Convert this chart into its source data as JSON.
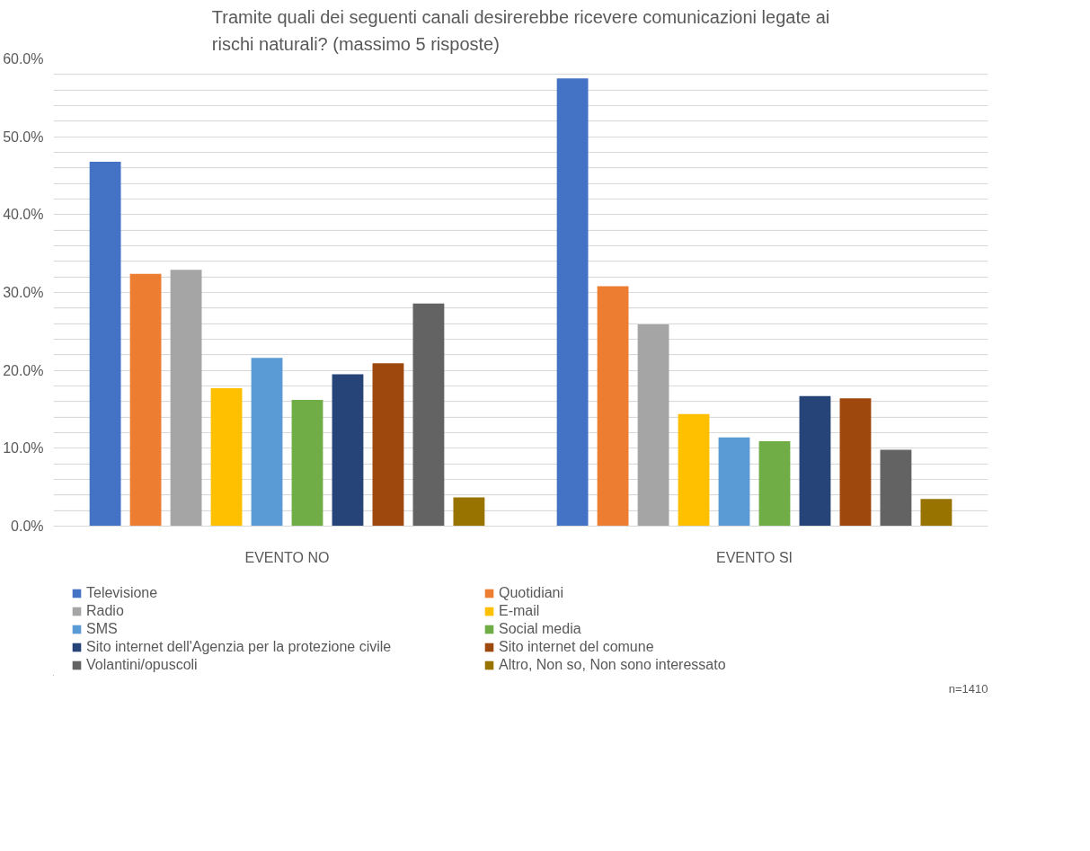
{
  "chart_data": {
    "type": "bar",
    "title": "Tramite quali dei seguenti canali desirerebbe ricevere comunicazioni legate ai rischi naturali? (massimo 5 risposte)",
    "categories": [
      "EVENTO NO",
      "EVENTO SI"
    ],
    "series": [
      {
        "name": "Televisione",
        "color": "#4472c4",
        "values": [
          46.8,
          57.5
        ]
      },
      {
        "name": "Quotidiani",
        "color": "#ed7d31",
        "values": [
          32.4,
          30.8
        ]
      },
      {
        "name": "Radio",
        "color": "#a5a5a5",
        "values": [
          32.9,
          25.9
        ]
      },
      {
        "name": "E-mail",
        "color": "#ffc000",
        "values": [
          17.7,
          14.4
        ]
      },
      {
        "name": "SMS",
        "color": "#5b9bd5",
        "values": [
          21.6,
          11.4
        ]
      },
      {
        "name": "Social media",
        "color": "#70ad47",
        "values": [
          16.2,
          10.9
        ]
      },
      {
        "name": "Sito internet dell'Agenzia per la protezione civile",
        "color": "#264478",
        "values": [
          19.5,
          16.7
        ]
      },
      {
        "name": "Sito internet del comune",
        "color": "#9e480e",
        "values": [
          20.9,
          16.4
        ]
      },
      {
        "name": "Volantini/opuscoli",
        "color": "#636363",
        "values": [
          28.6,
          9.8
        ]
      },
      {
        "name": "Altro, Non so, Non sono interessato",
        "color": "#997300",
        "values": [
          3.7,
          3.5
        ]
      }
    ],
    "ylim": [
      0,
      60
    ],
    "yticks": [
      {
        "value": 0,
        "label": "0.0%"
      },
      {
        "value": 2,
        "label": null
      },
      {
        "value": 4,
        "label": null
      },
      {
        "value": 6,
        "label": null
      },
      {
        "value": 8,
        "label": null
      },
      {
        "value": 10,
        "label": "10.0%"
      },
      {
        "value": 12,
        "label": null
      },
      {
        "value": 14,
        "label": null
      },
      {
        "value": 16,
        "label": null
      },
      {
        "value": 18,
        "label": null
      },
      {
        "value": 20,
        "label": "20.0%"
      },
      {
        "value": 22,
        "label": null
      },
      {
        "value": 24,
        "label": null
      },
      {
        "value": 26,
        "label": null
      },
      {
        "value": 28,
        "label": null
      },
      {
        "value": 30,
        "label": "30.0%"
      },
      {
        "value": 32,
        "label": null
      },
      {
        "value": 34,
        "label": null
      },
      {
        "value": 36,
        "label": null
      },
      {
        "value": 38,
        "label": null
      },
      {
        "value": 40,
        "label": "40.0%"
      },
      {
        "value": 42,
        "label": null
      },
      {
        "value": 44,
        "label": null
      },
      {
        "value": 46,
        "label": null
      },
      {
        "value": 48,
        "label": null
      },
      {
        "value": 50,
        "label": "50.0%"
      },
      {
        "value": 52,
        "label": null
      },
      {
        "value": 54,
        "label": null
      },
      {
        "value": 56,
        "label": null
      },
      {
        "value": 58,
        "label": null
      },
      {
        "value": 60,
        "label": "60.0%"
      }
    ],
    "grid": "y",
    "legend": "bottom",
    "annotations": [
      "n=1410"
    ]
  }
}
